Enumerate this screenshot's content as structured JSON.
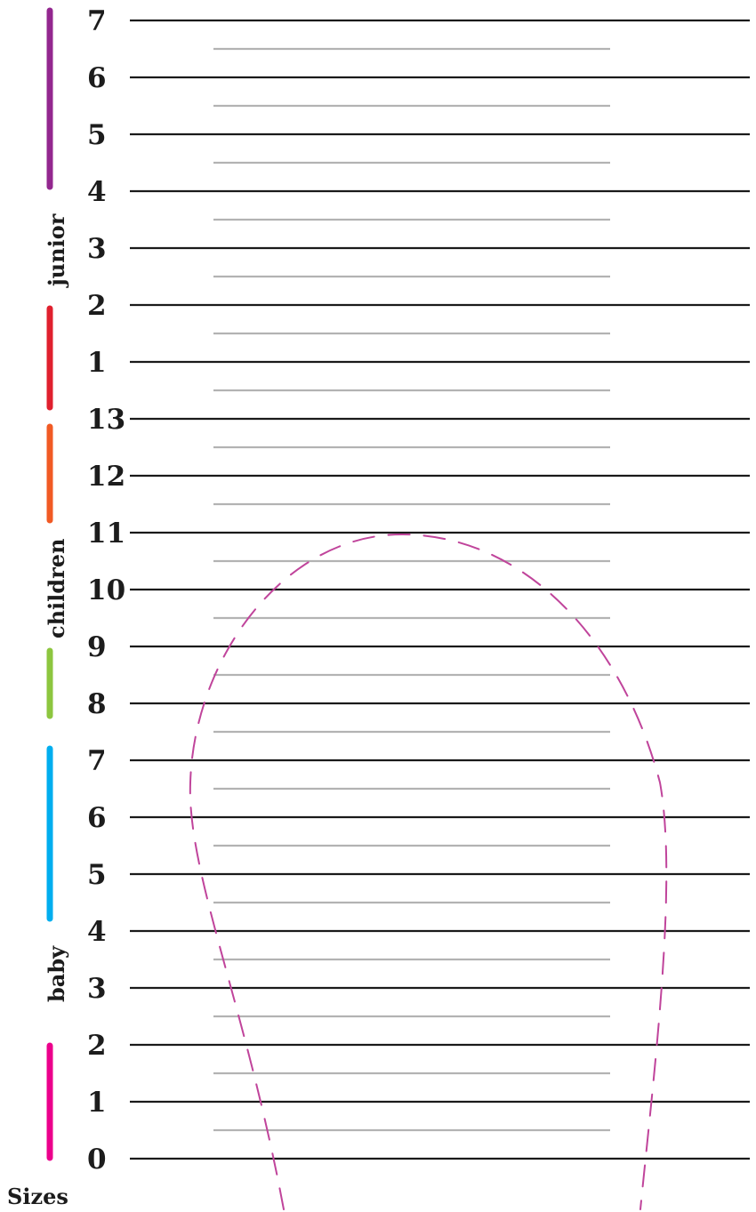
{
  "size_labels": [
    "7",
    "6",
    "5",
    "4",
    "3",
    "2",
    "1",
    "13",
    "12",
    "11",
    "10",
    "9",
    "8",
    "7",
    "6",
    "5",
    "4",
    "3",
    "2",
    "1",
    "0"
  ],
  "groups": {
    "junior": {
      "label": "junior",
      "color": "#93278f"
    },
    "children": {
      "label": "children",
      "color": "#f15a24"
    },
    "baby": {
      "label": "baby",
      "color": "#00aeef"
    },
    "red_segment_color": "#e0202e",
    "green_segment_color": "#8dc63f",
    "pink_segment_color": "#ec008c"
  },
  "footer_label": "Sizes",
  "foot_outline_color": "#c0449b",
  "major_line_color": "#1a1a1a",
  "minor_line_color": "#b3b3b3"
}
